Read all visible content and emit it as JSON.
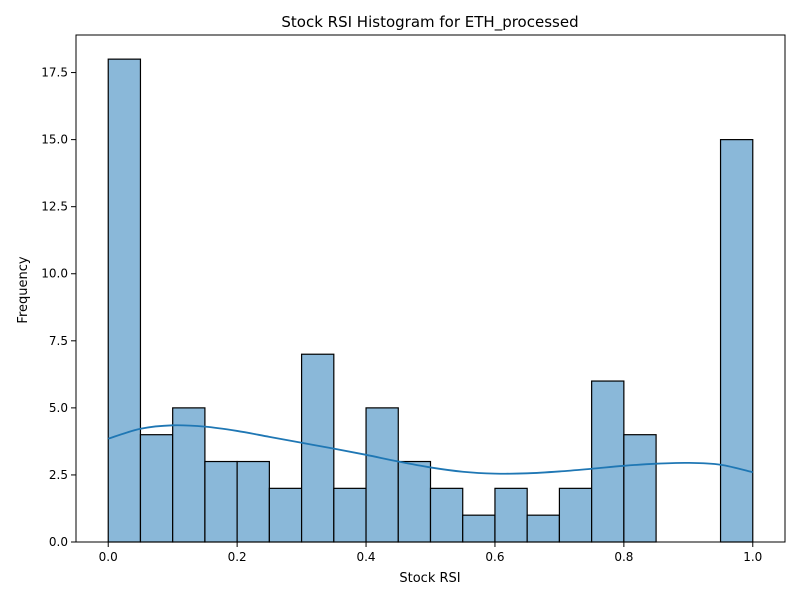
{
  "chart_data": {
    "type": "bar",
    "title": "Stock RSI Histogram for ETH_processed",
    "xlabel": "Stock RSI",
    "ylabel": "Frequency",
    "xlim": [
      -0.05,
      1.05
    ],
    "ylim": [
      0,
      18.9
    ],
    "bin_width": 0.05,
    "bins": [
      {
        "start": 0.0,
        "end": 0.05,
        "count": 18
      },
      {
        "start": 0.05,
        "end": 0.1,
        "count": 4
      },
      {
        "start": 0.1,
        "end": 0.15,
        "count": 5
      },
      {
        "start": 0.15,
        "end": 0.2,
        "count": 3
      },
      {
        "start": 0.2,
        "end": 0.25,
        "count": 3
      },
      {
        "start": 0.25,
        "end": 0.3,
        "count": 2
      },
      {
        "start": 0.3,
        "end": 0.35,
        "count": 7
      },
      {
        "start": 0.35,
        "end": 0.4,
        "count": 2
      },
      {
        "start": 0.4,
        "end": 0.45,
        "count": 5
      },
      {
        "start": 0.45,
        "end": 0.5,
        "count": 3
      },
      {
        "start": 0.5,
        "end": 0.55,
        "count": 2
      },
      {
        "start": 0.55,
        "end": 0.6,
        "count": 1
      },
      {
        "start": 0.6,
        "end": 0.65,
        "count": 2
      },
      {
        "start": 0.65,
        "end": 0.7,
        "count": 1
      },
      {
        "start": 0.7,
        "end": 0.75,
        "count": 2
      },
      {
        "start": 0.75,
        "end": 0.8,
        "count": 6
      },
      {
        "start": 0.8,
        "end": 0.85,
        "count": 4
      },
      {
        "start": 0.85,
        "end": 0.9,
        "count": 0
      },
      {
        "start": 0.9,
        "end": 0.95,
        "count": 0
      },
      {
        "start": 0.95,
        "end": 1.0,
        "count": 15
      }
    ],
    "kde": {
      "x": [
        0.0,
        0.05,
        0.1,
        0.15,
        0.2,
        0.25,
        0.3,
        0.35,
        0.4,
        0.45,
        0.5,
        0.55,
        0.6,
        0.65,
        0.7,
        0.75,
        0.8,
        0.85,
        0.9,
        0.95,
        1.0
      ],
      "y": [
        3.85,
        4.22,
        4.35,
        4.3,
        4.14,
        3.92,
        3.7,
        3.48,
        3.25,
        3.0,
        2.78,
        2.62,
        2.55,
        2.56,
        2.63,
        2.73,
        2.84,
        2.92,
        2.95,
        2.88,
        2.6
      ]
    },
    "x_ticks": [
      0.0,
      0.2,
      0.4,
      0.6,
      0.8,
      1.0
    ],
    "x_tick_labels": [
      "0.0",
      "0.2",
      "0.4",
      "0.6",
      "0.8",
      "1.0"
    ],
    "y_ticks": [
      0.0,
      2.5,
      5.0,
      7.5,
      10.0,
      12.5,
      15.0,
      17.5
    ],
    "y_tick_labels": [
      "0.0",
      "2.5",
      "5.0",
      "7.5",
      "10.0",
      "12.5",
      "15.0",
      "17.5"
    ],
    "grid": false,
    "colors": {
      "bar_fill": "#8ab8d9",
      "bar_edge": "#000000",
      "kde_line": "#1f77b4",
      "axis": "#000000"
    }
  }
}
